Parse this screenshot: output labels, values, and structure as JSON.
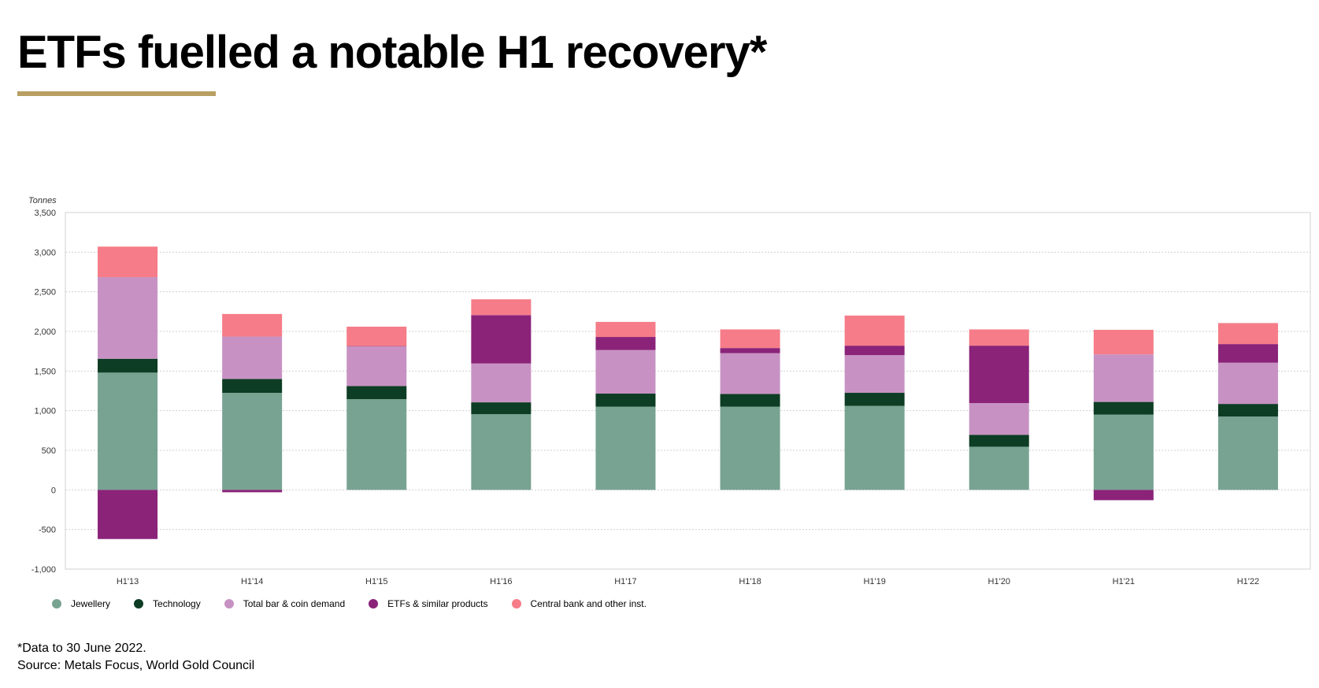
{
  "title": "ETFs fuelled a notable H1 recovery*",
  "accent_color": "#b8a063",
  "footnote": "*Data to 30 June 2022.",
  "source": "Source: Metals Focus, World Gold Council",
  "chart_data": {
    "type": "bar",
    "stacked": true,
    "ylabel": "Tonnes",
    "ylim": [
      -1000,
      3500
    ],
    "yticks": [
      "3,500",
      "3,000",
      "2,500",
      "2,000",
      "1,500",
      "1,000",
      "500",
      "0",
      "-500",
      "-1,000"
    ],
    "ytick_values": [
      3500,
      3000,
      2500,
      2000,
      1500,
      1000,
      500,
      0,
      -500,
      -1000
    ],
    "grid": true,
    "legend_position": "bottom",
    "categories": [
      "H1'13",
      "H1'14",
      "H1'15",
      "H1'16",
      "H1'17",
      "H1'18",
      "H1'19",
      "H1'20",
      "H1'21",
      "H1'22"
    ],
    "series": [
      {
        "name": "Jewellery",
        "color": "#78a392",
        "values": [
          1480,
          1225,
          1145,
          955,
          1050,
          1050,
          1060,
          545,
          950,
          925
        ]
      },
      {
        "name": "Technology",
        "color": "#0d3d24",
        "values": [
          175,
          175,
          165,
          150,
          165,
          160,
          165,
          150,
          160,
          160
        ]
      },
      {
        "name": "Total bar & coin demand",
        "color": "#c792c3",
        "values": [
          1030,
          535,
          500,
          490,
          550,
          515,
          475,
          400,
          600,
          520
        ]
      },
      {
        "name": "ETFs & similar products",
        "color": "#8b2379",
        "values": [
          -620,
          -30,
          5,
          610,
          165,
          65,
          120,
          725,
          -130,
          235
        ]
      },
      {
        "name": "Central bank and other inst.",
        "color": "#f57c88",
        "values": [
          385,
          285,
          245,
          200,
          190,
          235,
          380,
          205,
          310,
          265
        ]
      }
    ]
  }
}
